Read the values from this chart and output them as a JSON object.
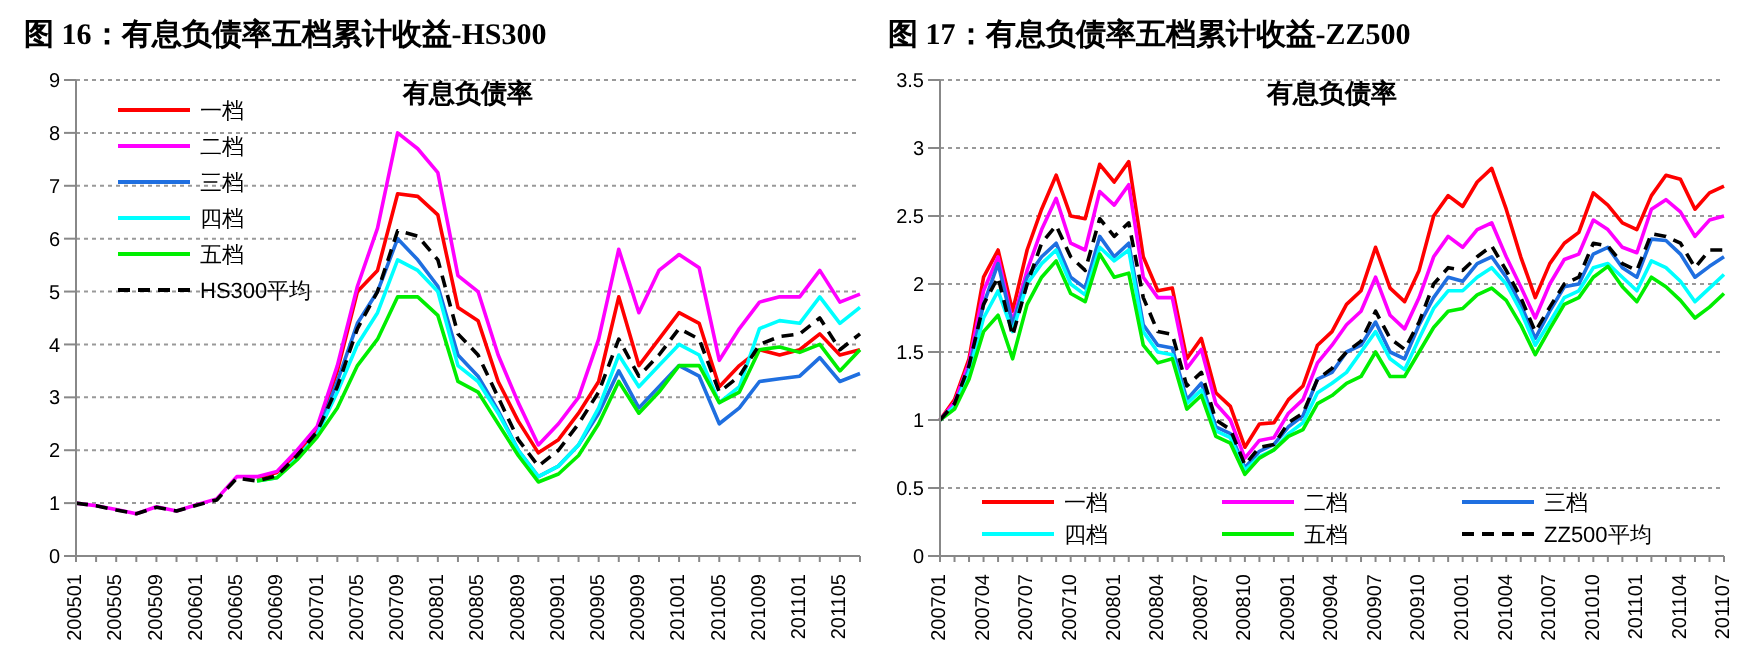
{
  "chart_data": [
    {
      "type": "line",
      "title": "图 16：有息负债率五档累计收益-HS300",
      "subtitle": "有息负债率",
      "categories": [
        "200501",
        null,
        "200505",
        null,
        "200509",
        null,
        "200601",
        null,
        "200605",
        null,
        "200609",
        null,
        "200701",
        null,
        "200705",
        null,
        "200709",
        null,
        "200801",
        null,
        "200805",
        null,
        "200809",
        null,
        "200901",
        null,
        "200905",
        null,
        "200909",
        null,
        "201001",
        null,
        "201005",
        null,
        "201009",
        null,
        "201101",
        null,
        "201105",
        null
      ],
      "ylim": [
        0,
        9
      ],
      "yticks": [
        0,
        1,
        2,
        3,
        4,
        5,
        6,
        7,
        8,
        9
      ],
      "grid": "y",
      "legend": "top left",
      "marker": "none",
      "series": [
        {
          "name": "一档",
          "color": "#ff0000",
          "values": [
            null,
            null,
            null,
            null,
            null,
            null,
            null,
            null,
            null,
            1.48,
            1.58,
            1.95,
            2.4,
            3.5,
            5.0,
            5.4,
            6.85,
            6.8,
            6.45,
            4.7,
            4.45,
            3.3,
            2.55,
            1.95,
            2.2,
            2.7,
            3.3,
            4.9,
            3.6,
            4.1,
            4.6,
            4.4,
            3.2,
            3.6,
            3.9,
            3.8,
            3.9,
            4.2,
            3.8,
            3.9
          ]
        },
        {
          "name": "二档",
          "color": "#ff00ff",
          "values": [
            1.0,
            0.95,
            0.88,
            0.8,
            0.93,
            0.85,
            0.97,
            1.08,
            1.5,
            1.5,
            1.6,
            2.0,
            2.45,
            3.6,
            5.1,
            6.2,
            8.0,
            7.7,
            7.25,
            5.3,
            5.0,
            3.8,
            2.9,
            2.1,
            2.5,
            3.0,
            4.1,
            5.8,
            4.6,
            5.4,
            5.7,
            5.45,
            3.7,
            4.3,
            4.8,
            4.9,
            4.9,
            5.4,
            4.8,
            4.95
          ]
        },
        {
          "name": "三档",
          "color": "#1f6fe0",
          "values": [
            null,
            null,
            null,
            null,
            null,
            null,
            null,
            null,
            null,
            null,
            null,
            null,
            2.3,
            3.3,
            4.4,
            5.0,
            6.0,
            5.6,
            5.1,
            3.8,
            3.4,
            2.75,
            2.0,
            1.5,
            1.7,
            2.1,
            2.7,
            3.5,
            2.8,
            3.2,
            3.6,
            3.4,
            2.5,
            2.8,
            3.3,
            3.35,
            3.4,
            3.75,
            3.3,
            3.45
          ]
        },
        {
          "name": "四档",
          "color": "#00ffff",
          "values": [
            null,
            null,
            null,
            null,
            null,
            null,
            null,
            null,
            null,
            1.42,
            1.48,
            1.85,
            2.3,
            3.1,
            4.0,
            4.6,
            5.6,
            5.4,
            5.0,
            3.6,
            3.3,
            2.7,
            2.0,
            1.5,
            1.7,
            2.1,
            2.8,
            3.8,
            3.2,
            3.6,
            4.0,
            3.8,
            2.9,
            3.2,
            4.3,
            4.45,
            4.4,
            4.9,
            4.4,
            4.7
          ]
        },
        {
          "name": "五档",
          "color": "#00ee00",
          "values": [
            null,
            null,
            null,
            null,
            null,
            null,
            null,
            null,
            null,
            1.42,
            1.48,
            1.82,
            2.25,
            2.8,
            3.6,
            4.1,
            4.9,
            4.9,
            4.55,
            3.3,
            3.1,
            2.5,
            1.9,
            1.4,
            1.55,
            1.9,
            2.5,
            3.3,
            2.7,
            3.1,
            3.6,
            3.6,
            2.9,
            3.1,
            3.9,
            3.95,
            3.85,
            4.0,
            3.5,
            3.9
          ]
        },
        {
          "name": "HS300平均",
          "color": "#000000",
          "line_style": "dashed",
          "values": [
            1.0,
            0.95,
            0.87,
            0.8,
            0.92,
            0.85,
            0.96,
            1.06,
            1.47,
            1.42,
            1.52,
            1.9,
            2.35,
            3.2,
            4.3,
            5.0,
            6.15,
            6.05,
            5.6,
            4.2,
            3.8,
            3.0,
            2.2,
            1.7,
            2.0,
            2.5,
            3.1,
            4.1,
            3.4,
            3.8,
            4.3,
            4.1,
            3.1,
            3.4,
            4.0,
            4.15,
            4.2,
            4.5,
            3.9,
            4.2
          ]
        }
      ]
    },
    {
      "type": "line",
      "title": "图 17：有息负债率五档累计收益-ZZ500",
      "subtitle": "有息负债率",
      "categories": [
        "200701",
        null,
        null,
        "200704",
        null,
        null,
        "200707",
        null,
        null,
        "200710",
        null,
        null,
        "200801",
        null,
        null,
        "200804",
        null,
        null,
        "200807",
        null,
        null,
        "200810",
        null,
        null,
        "200901",
        null,
        null,
        "200904",
        null,
        null,
        "200907",
        null,
        null,
        "200910",
        null,
        null,
        "201001",
        null,
        null,
        "201004",
        null,
        null,
        "201007",
        null,
        null,
        "201010",
        null,
        null,
        "201101",
        null,
        null,
        "201104",
        null,
        null,
        "201107"
      ],
      "ylim": [
        0,
        3.5
      ],
      "yticks": [
        0,
        0.5,
        1,
        1.5,
        2,
        2.5,
        3,
        3.5
      ],
      "grid": "y",
      "legend": "bottom",
      "marker": "none",
      "series": [
        {
          "name": "一档",
          "color": "#ff0000",
          "values": [
            1.0,
            1.15,
            1.45,
            2.05,
            2.25,
            1.8,
            2.25,
            2.55,
            2.8,
            2.5,
            2.48,
            2.88,
            2.75,
            2.9,
            2.2,
            1.95,
            1.97,
            1.45,
            1.6,
            1.2,
            1.1,
            0.8,
            0.97,
            0.98,
            1.15,
            1.25,
            1.55,
            1.65,
            1.85,
            1.95,
            2.27,
            1.97,
            1.87,
            2.1,
            2.5,
            2.65,
            2.57,
            2.75,
            2.85,
            2.55,
            2.2,
            1.9,
            2.15,
            2.3,
            2.38,
            2.67,
            2.58,
            2.45,
            2.4,
            2.65,
            2.8,
            2.77,
            2.55,
            2.67,
            2.72
          ]
        },
        {
          "name": "二档",
          "color": "#ff00ff",
          "values": [
            1.0,
            1.13,
            1.42,
            1.95,
            2.2,
            1.72,
            2.1,
            2.4,
            2.63,
            2.3,
            2.25,
            2.68,
            2.58,
            2.73,
            2.05,
            1.9,
            1.9,
            1.38,
            1.52,
            1.12,
            1.0,
            0.72,
            0.85,
            0.87,
            1.05,
            1.15,
            1.42,
            1.55,
            1.7,
            1.8,
            2.05,
            1.77,
            1.67,
            1.9,
            2.2,
            2.35,
            2.27,
            2.4,
            2.45,
            2.2,
            1.98,
            1.75,
            2.0,
            2.18,
            2.22,
            2.47,
            2.4,
            2.27,
            2.23,
            2.55,
            2.62,
            2.53,
            2.35,
            2.47,
            2.5
          ]
        },
        {
          "name": "三档",
          "color": "#1f6fe0",
          "values": [
            1.0,
            1.1,
            1.38,
            1.85,
            2.15,
            1.7,
            2.05,
            2.2,
            2.3,
            2.05,
            1.97,
            2.35,
            2.2,
            2.3,
            1.7,
            1.55,
            1.53,
            1.15,
            1.27,
            0.95,
            0.9,
            0.65,
            0.77,
            0.82,
            0.95,
            1.03,
            1.3,
            1.35,
            1.5,
            1.55,
            1.72,
            1.5,
            1.45,
            1.7,
            1.9,
            2.05,
            2.02,
            2.15,
            2.2,
            2.05,
            1.85,
            1.6,
            1.8,
            1.98,
            2.0,
            2.22,
            2.27,
            2.12,
            2.05,
            2.33,
            2.32,
            2.22,
            2.05,
            2.13,
            2.2
          ]
        },
        {
          "name": "四档",
          "color": "#00ffff",
          "values": [
            1.0,
            1.1,
            1.35,
            1.75,
            1.95,
            1.65,
            2.0,
            2.15,
            2.25,
            2.0,
            1.92,
            2.27,
            2.17,
            2.25,
            1.65,
            1.5,
            1.48,
            1.12,
            1.22,
            0.92,
            0.87,
            0.63,
            0.73,
            0.78,
            0.9,
            0.98,
            1.2,
            1.27,
            1.35,
            1.5,
            1.65,
            1.45,
            1.37,
            1.6,
            1.82,
            1.95,
            1.95,
            2.05,
            2.12,
            2.0,
            1.8,
            1.55,
            1.72,
            1.9,
            1.95,
            2.12,
            2.15,
            2.05,
            1.95,
            2.17,
            2.12,
            2.02,
            1.87,
            1.97,
            2.07
          ]
        },
        {
          "name": "五档",
          "color": "#00ee00",
          "values": [
            1.0,
            1.08,
            1.3,
            1.65,
            1.77,
            1.45,
            1.85,
            2.05,
            2.17,
            1.93,
            1.87,
            2.22,
            2.05,
            2.08,
            1.55,
            1.42,
            1.45,
            1.08,
            1.18,
            0.88,
            0.83,
            0.6,
            0.72,
            0.78,
            0.88,
            0.93,
            1.12,
            1.18,
            1.27,
            1.32,
            1.5,
            1.32,
            1.32,
            1.5,
            1.68,
            1.8,
            1.82,
            1.92,
            1.97,
            1.88,
            1.7,
            1.48,
            1.67,
            1.85,
            1.9,
            2.05,
            2.13,
            1.98,
            1.87,
            2.05,
            1.98,
            1.88,
            1.75,
            1.83,
            1.93
          ]
        },
        {
          "name": "ZZ500平均",
          "color": "#000000",
          "line_style": "dashed",
          "values": [
            1.0,
            1.12,
            1.4,
            1.85,
            2.05,
            1.62,
            2.0,
            2.3,
            2.43,
            2.2,
            2.1,
            2.48,
            2.35,
            2.45,
            1.9,
            1.65,
            1.63,
            1.25,
            1.35,
            1.0,
            0.93,
            0.67,
            0.8,
            0.82,
            0.98,
            1.05,
            1.3,
            1.38,
            1.5,
            1.58,
            1.8,
            1.6,
            1.52,
            1.72,
            2.0,
            2.12,
            2.1,
            2.2,
            2.28,
            2.1,
            1.9,
            1.65,
            1.83,
            2.0,
            2.05,
            2.3,
            2.28,
            2.15,
            2.1,
            2.37,
            2.35,
            2.3,
            2.12,
            2.25,
            2.25
          ]
        }
      ]
    }
  ]
}
